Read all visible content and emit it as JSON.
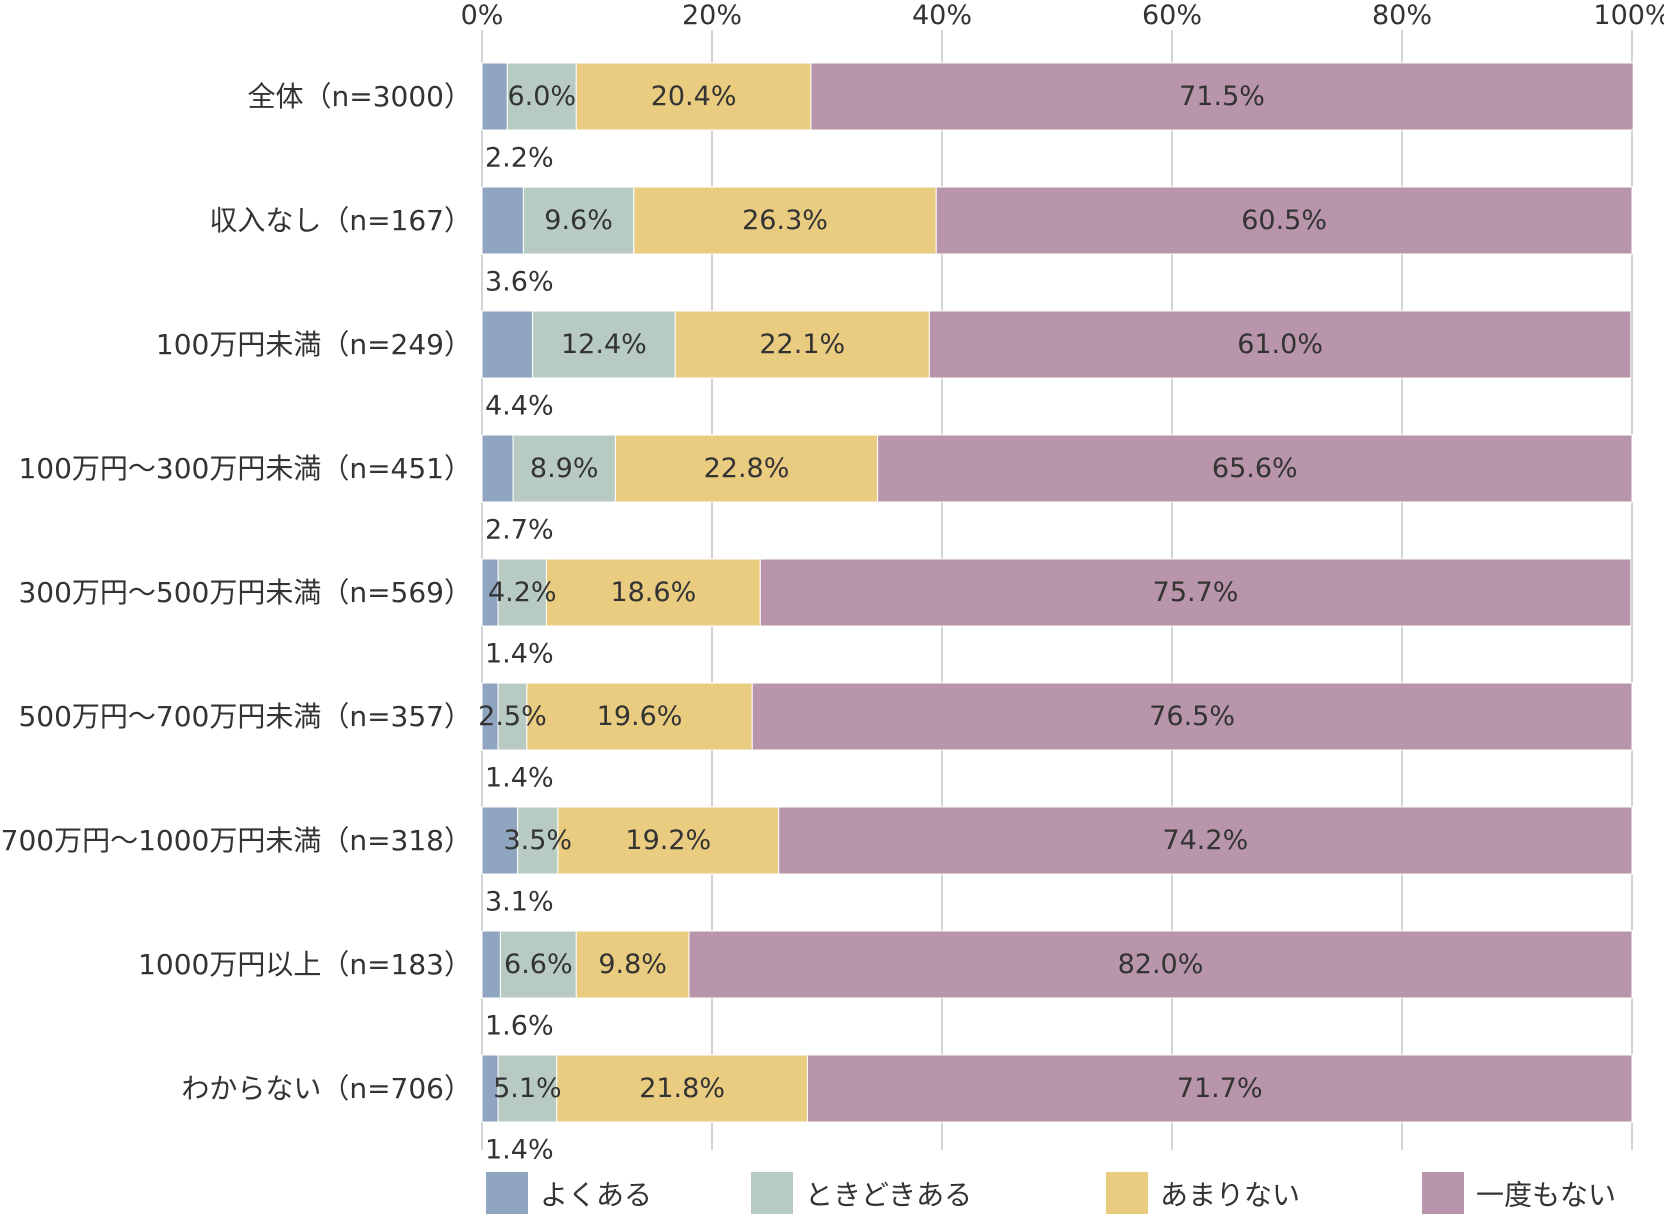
{
  "chart_data": {
    "type": "bar",
    "orientation": "horizontal",
    "stacked": true,
    "normalized_percent": true,
    "title": "",
    "xlabel": "",
    "ylabel": "",
    "xlim": [
      0,
      100
    ],
    "x_ticks": [
      "0%",
      "20%",
      "40%",
      "60%",
      "80%",
      "100%"
    ],
    "grid": true,
    "legend_position": "bottom",
    "categories": [
      "全体（n=3000）",
      "収入なし（n=167）",
      "100万円未満（n=249）",
      "100万円～300万円未満（n=451）",
      "300万円～500万円未満（n=569）",
      "500万円～700万円未満（n=357）",
      "700万円～1000万円未満（n=318）",
      "1000万円以上（n=183）",
      "わからない（n=706）"
    ],
    "series": [
      {
        "name": "よくある",
        "color": "#8fa5c0",
        "values": [
          2.2,
          3.6,
          4.4,
          2.7,
          1.4,
          1.4,
          3.1,
          1.6,
          1.4
        ],
        "labels": [
          "2.2%",
          "3.6%",
          "4.4%",
          "2.7%",
          "1.4%",
          "1.4%",
          "3.1%",
          "1.6%",
          "1.4%"
        ]
      },
      {
        "name": "ときどきある",
        "color": "#b8cbc2",
        "values": [
          6.0,
          9.6,
          12.4,
          8.9,
          4.2,
          2.5,
          3.5,
          6.6,
          5.1
        ],
        "labels": [
          "6.0%",
          "9.6%",
          "12.4%",
          "8.9%",
          "4.2%",
          "2.5%",
          "3.5%",
          "6.6%",
          "5.1%"
        ]
      },
      {
        "name": "あまりない",
        "color": "#e9cc80",
        "values": [
          20.4,
          26.3,
          22.1,
          22.8,
          18.6,
          19.6,
          19.2,
          9.8,
          21.8
        ],
        "labels": [
          "20.4%",
          "26.3%",
          "22.1%",
          "22.8%",
          "18.6%",
          "19.6%",
          "19.2%",
          "9.8%",
          "21.8%"
        ]
      },
      {
        "name": "一度もない",
        "color": "#b895aa",
        "values": [
          71.5,
          60.5,
          61.0,
          65.6,
          75.7,
          76.5,
          74.2,
          82.0,
          71.7
        ],
        "labels": [
          "71.5%",
          "60.5%",
          "61.0%",
          "65.6%",
          "75.7%",
          "76.5%",
          "74.2%",
          "82.0%",
          "71.7%"
        ]
      }
    ]
  }
}
